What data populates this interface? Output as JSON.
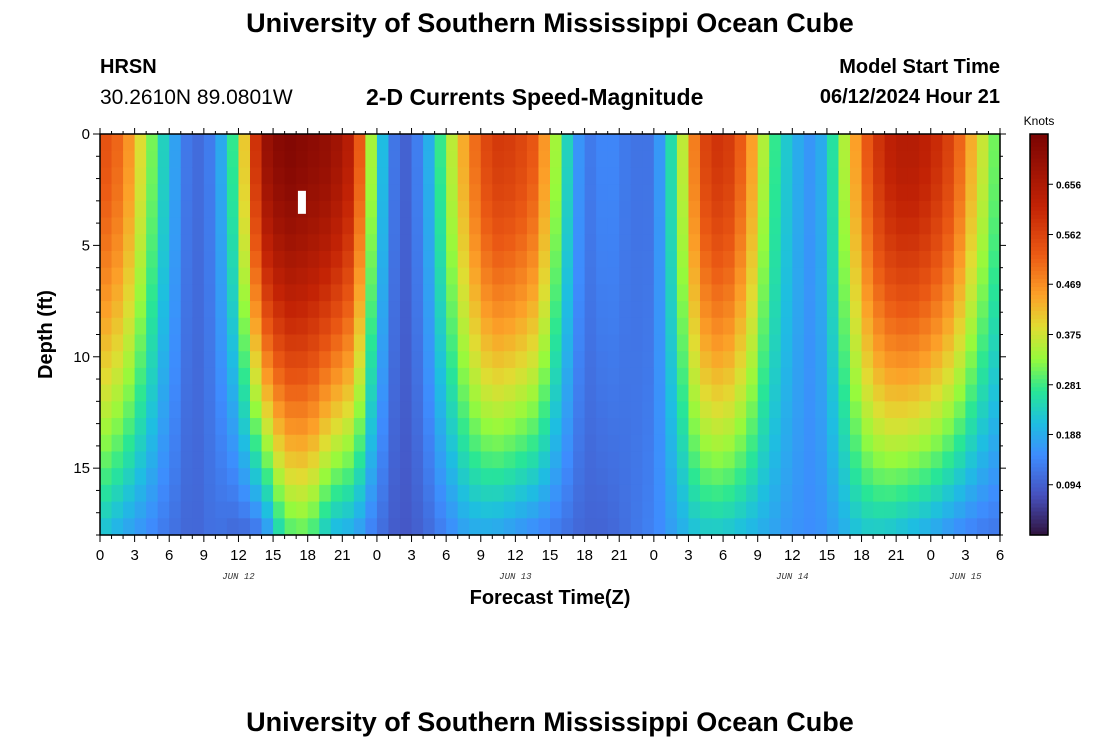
{
  "title": "University of Southern Mississippi Ocean Cube",
  "title_repeat": "University of Southern Mississippi Ocean Cube",
  "station": {
    "name": "HRSN",
    "coords": "30.2610N  89.0801W"
  },
  "subtitle": "2-D Currents Speed-Magnitude",
  "model_start": {
    "label": "Model Start Time",
    "value": "06/12/2024 Hour 21"
  },
  "chart_data": {
    "type": "heatmap",
    "title": "2-D Currents Speed-Magnitude",
    "xlabel": "Forecast Time(Z)",
    "ylabel": "Depth (ft)",
    "x_range_hours": [
      0,
      78
    ],
    "x_ticks": [
      {
        "hour": 0,
        "label": "0"
      },
      {
        "hour": 3,
        "label": "3"
      },
      {
        "hour": 6,
        "label": "6"
      },
      {
        "hour": 9,
        "label": "9"
      },
      {
        "hour": 12,
        "label": "12"
      },
      {
        "hour": 15,
        "label": "15"
      },
      {
        "hour": 18,
        "label": "18"
      },
      {
        "hour": 21,
        "label": "21"
      },
      {
        "hour": 24,
        "label": "0"
      },
      {
        "hour": 27,
        "label": "3"
      },
      {
        "hour": 30,
        "label": "6"
      },
      {
        "hour": 33,
        "label": "9"
      },
      {
        "hour": 36,
        "label": "12"
      },
      {
        "hour": 39,
        "label": "15"
      },
      {
        "hour": 42,
        "label": "18"
      },
      {
        "hour": 45,
        "label": "21"
      },
      {
        "hour": 48,
        "label": "0"
      },
      {
        "hour": 51,
        "label": "3"
      },
      {
        "hour": 54,
        "label": "6"
      },
      {
        "hour": 57,
        "label": "9"
      },
      {
        "hour": 60,
        "label": "12"
      },
      {
        "hour": 63,
        "label": "15"
      },
      {
        "hour": 66,
        "label": "18"
      },
      {
        "hour": 69,
        "label": "21"
      },
      {
        "hour": 72,
        "label": "0"
      },
      {
        "hour": 75,
        "label": "3"
      },
      {
        "hour": 78,
        "label": "6"
      }
    ],
    "date_labels": [
      {
        "hour": 12,
        "label": "JUN 12"
      },
      {
        "hour": 36,
        "label": "JUN 13"
      },
      {
        "hour": 60,
        "label": "JUN 14"
      },
      {
        "hour": 75,
        "label": "JUN 15"
      }
    ],
    "y_range_ft": [
      0,
      18
    ],
    "y_ticks": [
      0,
      5,
      10,
      15
    ],
    "colorbar": {
      "units": "Knots",
      "range": [
        0,
        0.75
      ],
      "ticks": [
        0.094,
        0.188,
        0.281,
        0.375,
        0.469,
        0.562,
        0.656
      ],
      "tick_labels": [
        "0.094",
        "0.188",
        "0.281",
        "0.375",
        "0.469",
        "0.562",
        "0.656"
      ]
    },
    "speed_profile_knots": {
      "hours": [
        0,
        2,
        4,
        6,
        8,
        10,
        12,
        14,
        16,
        18,
        20,
        22,
        24,
        26,
        28,
        30,
        32,
        34,
        36,
        38,
        40,
        42,
        44,
        46,
        48,
        50,
        52,
        54,
        56,
        58,
        60,
        62,
        64,
        66,
        68,
        70,
        72,
        74,
        76,
        78
      ],
      "surface": [
        0.55,
        0.5,
        0.35,
        0.2,
        0.1,
        0.14,
        0.32,
        0.68,
        0.74,
        0.72,
        0.7,
        0.62,
        0.25,
        0.08,
        0.15,
        0.32,
        0.48,
        0.58,
        0.57,
        0.52,
        0.28,
        0.12,
        0.15,
        0.12,
        0.12,
        0.3,
        0.55,
        0.6,
        0.5,
        0.3,
        0.2,
        0.15,
        0.3,
        0.5,
        0.62,
        0.65,
        0.62,
        0.55,
        0.4,
        0.28
      ],
      "bottom": [
        0.22,
        0.18,
        0.15,
        0.12,
        0.1,
        0.12,
        0.1,
        0.12,
        0.28,
        0.3,
        0.2,
        0.18,
        0.12,
        0.08,
        0.1,
        0.14,
        0.18,
        0.18,
        0.16,
        0.14,
        0.12,
        0.1,
        0.1,
        0.12,
        0.14,
        0.18,
        0.22,
        0.22,
        0.2,
        0.18,
        0.16,
        0.15,
        0.18,
        0.22,
        0.22,
        0.2,
        0.18,
        0.15,
        0.13,
        0.12
      ]
    },
    "annotation": {
      "hour": 17.5,
      "depth_ft": 3,
      "type": "white-marker"
    }
  }
}
